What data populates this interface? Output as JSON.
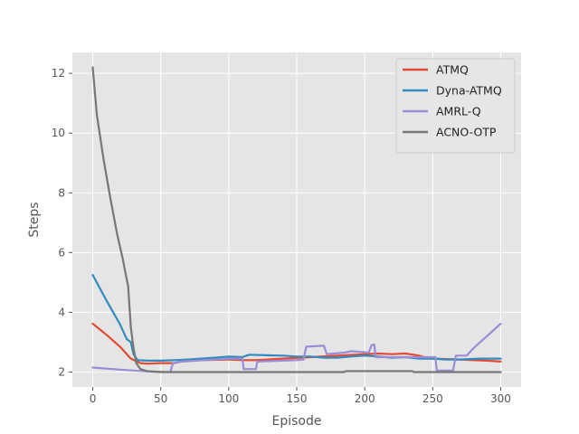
{
  "chart_data": {
    "type": "line",
    "title": "",
    "xlabel": "Episode",
    "ylabel": "Steps",
    "xlim": [
      -15,
      315
    ],
    "ylim": [
      1.5,
      12.7
    ],
    "xticks": [
      0,
      50,
      100,
      150,
      200,
      250,
      300
    ],
    "yticks": [
      2,
      4,
      6,
      8,
      10,
      12
    ],
    "xtick_labels": [
      "0",
      "50",
      "100",
      "150",
      "200",
      "250",
      "300"
    ],
    "ytick_labels": [
      "2",
      "4",
      "6",
      "8",
      "10",
      "12"
    ],
    "grid": true,
    "style": "ggplot",
    "legend_position": "top-right",
    "series": [
      {
        "name": "ATMQ",
        "color": "#e24a33",
        "points": [
          [
            0,
            3.62
          ],
          [
            10,
            3.25
          ],
          [
            20,
            2.85
          ],
          [
            28,
            2.45
          ],
          [
            35,
            2.3
          ],
          [
            40,
            2.28
          ],
          [
            50,
            2.3
          ],
          [
            60,
            2.3
          ],
          [
            65,
            2.35
          ],
          [
            80,
            2.4
          ],
          [
            100,
            2.42
          ],
          [
            110,
            2.4
          ],
          [
            120,
            2.4
          ],
          [
            140,
            2.45
          ],
          [
            160,
            2.5
          ],
          [
            180,
            2.55
          ],
          [
            200,
            2.6
          ],
          [
            210,
            2.62
          ],
          [
            220,
            2.6
          ],
          [
            230,
            2.62
          ],
          [
            240,
            2.55
          ],
          [
            245,
            2.48
          ],
          [
            250,
            2.45
          ],
          [
            270,
            2.42
          ],
          [
            290,
            2.38
          ],
          [
            300,
            2.35
          ]
        ]
      },
      {
        "name": "Dyna-ATMQ",
        "color": "#348abd",
        "points": [
          [
            0,
            5.25
          ],
          [
            10,
            4.4
          ],
          [
            20,
            3.6
          ],
          [
            25,
            3.1
          ],
          [
            28,
            3.0
          ],
          [
            30,
            2.6
          ],
          [
            33,
            2.4
          ],
          [
            40,
            2.38
          ],
          [
            50,
            2.38
          ],
          [
            60,
            2.4
          ],
          [
            70,
            2.42
          ],
          [
            90,
            2.48
          ],
          [
            100,
            2.52
          ],
          [
            110,
            2.5
          ],
          [
            115,
            2.58
          ],
          [
            130,
            2.56
          ],
          [
            140,
            2.55
          ],
          [
            150,
            2.52
          ],
          [
            160,
            2.52
          ],
          [
            170,
            2.48
          ],
          [
            180,
            2.48
          ],
          [
            190,
            2.52
          ],
          [
            200,
            2.55
          ],
          [
            210,
            2.52
          ],
          [
            220,
            2.48
          ],
          [
            230,
            2.5
          ],
          [
            240,
            2.45
          ],
          [
            250,
            2.45
          ],
          [
            260,
            2.42
          ],
          [
            270,
            2.42
          ],
          [
            285,
            2.45
          ],
          [
            300,
            2.45
          ]
        ]
      },
      {
        "name": "AMRL-Q",
        "color": "#988ed5",
        "points": [
          [
            0,
            2.15
          ],
          [
            20,
            2.08
          ],
          [
            30,
            2.05
          ],
          [
            40,
            2.02
          ],
          [
            57,
            2.0
          ],
          [
            59,
            2.3
          ],
          [
            65,
            2.35
          ],
          [
            100,
            2.45
          ],
          [
            110,
            2.45
          ],
          [
            111,
            2.1
          ],
          [
            120,
            2.1
          ],
          [
            121,
            2.35
          ],
          [
            150,
            2.4
          ],
          [
            155,
            2.42
          ],
          [
            157,
            2.85
          ],
          [
            170,
            2.88
          ],
          [
            172,
            2.6
          ],
          [
            185,
            2.65
          ],
          [
            190,
            2.7
          ],
          [
            203,
            2.65
          ],
          [
            205,
            2.9
          ],
          [
            207,
            2.92
          ],
          [
            208,
            2.5
          ],
          [
            240,
            2.5
          ],
          [
            252,
            2.5
          ],
          [
            253,
            2.05
          ],
          [
            265,
            2.05
          ],
          [
            267,
            2.55
          ],
          [
            275,
            2.55
          ],
          [
            280,
            2.8
          ],
          [
            300,
            3.62
          ]
        ]
      },
      {
        "name": "ACNO-OTP",
        "color": "#777777",
        "points": [
          [
            0,
            12.2
          ],
          [
            3,
            10.6
          ],
          [
            8,
            9.1
          ],
          [
            13,
            7.8
          ],
          [
            18,
            6.6
          ],
          [
            22,
            5.8
          ],
          [
            25,
            5.1
          ],
          [
            26,
            4.9
          ],
          [
            27,
            4.2
          ],
          [
            28,
            3.5
          ],
          [
            30,
            2.8
          ],
          [
            32,
            2.3
          ],
          [
            35,
            2.1
          ],
          [
            40,
            2.03
          ],
          [
            50,
            2.0
          ],
          [
            100,
            2.0
          ],
          [
            150,
            2.0
          ],
          [
            185,
            2.0
          ],
          [
            186,
            2.03
          ],
          [
            235,
            2.03
          ],
          [
            236,
            2.0
          ],
          [
            300,
            2.0
          ]
        ]
      }
    ]
  }
}
